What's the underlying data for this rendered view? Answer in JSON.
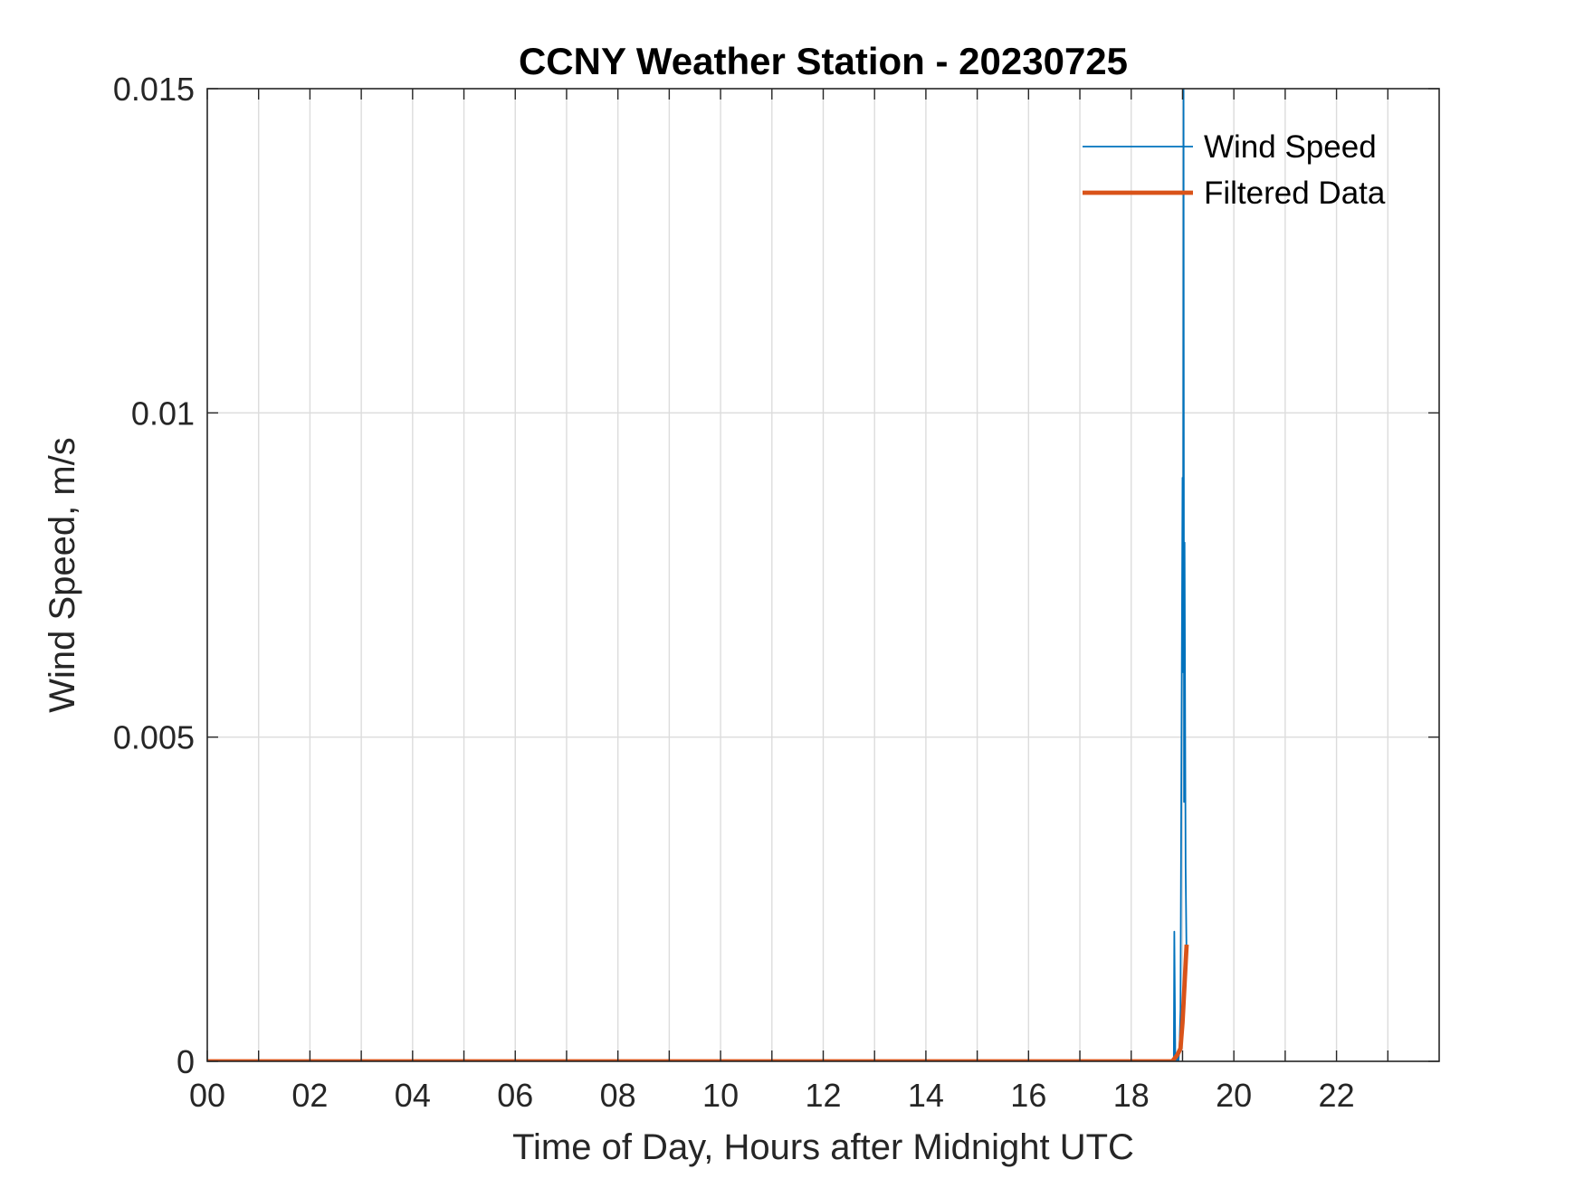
{
  "chart_data": {
    "type": "line",
    "title": "CCNY Weather Station - 20230725",
    "xlabel": "Time of Day, Hours after Midnight UTC",
    "ylabel": "Wind Speed, m/s",
    "xlim": [
      0,
      24
    ],
    "ylim": [
      0,
      0.015
    ],
    "x_ticks": [
      {
        "value": 0,
        "label": "00"
      },
      {
        "value": 2,
        "label": "02"
      },
      {
        "value": 4,
        "label": "04"
      },
      {
        "value": 6,
        "label": "06"
      },
      {
        "value": 8,
        "label": "08"
      },
      {
        "value": 10,
        "label": "10"
      },
      {
        "value": 12,
        "label": "12"
      },
      {
        "value": 14,
        "label": "14"
      },
      {
        "value": 16,
        "label": "16"
      },
      {
        "value": 18,
        "label": "18"
      },
      {
        "value": 20,
        "label": "20"
      },
      {
        "value": 22,
        "label": "22"
      }
    ],
    "x_minor_ticks": [
      1,
      3,
      5,
      7,
      9,
      11,
      13,
      15,
      17,
      19,
      21,
      23
    ],
    "y_ticks": [
      {
        "value": 0,
        "label": "0"
      },
      {
        "value": 0.005,
        "label": "0.005"
      },
      {
        "value": 0.01,
        "label": "0.01"
      },
      {
        "value": 0.015,
        "label": "0.015"
      }
    ],
    "grid": true,
    "legend_position": "top-right",
    "series": [
      {
        "name": "Wind Speed",
        "color": "#0072BD",
        "x": [
          0,
          18.8,
          18.83,
          18.84,
          18.86,
          18.88,
          18.9,
          18.92,
          18.94,
          18.96,
          18.98,
          19.0,
          19.01,
          19.02,
          19.03,
          19.04,
          19.06,
          19.08
        ],
        "y": [
          0,
          0,
          0,
          0.002,
          0,
          0,
          0.0001,
          0,
          0.0002,
          0.0008,
          0.005,
          0.009,
          0.006,
          0.0152,
          0.004,
          0.008,
          0.003,
          0.0015
        ]
      },
      {
        "name": "Filtered Data",
        "color": "#D95319",
        "x": [
          0,
          18.8,
          18.9,
          18.96,
          19.0,
          19.04,
          19.08
        ],
        "y": [
          0,
          0,
          0.0001,
          0.0002,
          0.0006,
          0.0012,
          0.0018
        ]
      }
    ]
  }
}
